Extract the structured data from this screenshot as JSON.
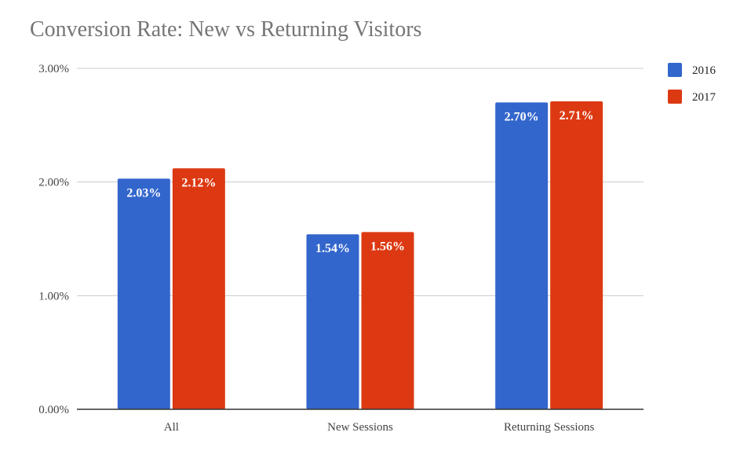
{
  "chart_data": {
    "type": "bar",
    "title": "Conversion Rate: New vs Returning Visitors",
    "categories": [
      "All",
      "New Sessions",
      "Returning Sessions"
    ],
    "series": [
      {
        "name": "2016",
        "color": "#3366cc",
        "values": [
          2.03,
          1.54,
          2.7
        ],
        "labels": [
          "2.03%",
          "1.54%",
          "2.70%"
        ]
      },
      {
        "name": "2017",
        "color": "#dc3912",
        "values": [
          2.12,
          1.56,
          2.71
        ],
        "labels": [
          "2.12%",
          "1.56%",
          "2.71%"
        ]
      }
    ],
    "yticks": [
      {
        "value": 0,
        "label": "0.00%"
      },
      {
        "value": 1,
        "label": "1.00%"
      },
      {
        "value": 2,
        "label": "2.00%"
      },
      {
        "value": 3,
        "label": "3.00%"
      }
    ],
    "ylim": [
      0,
      3
    ],
    "xlabel": "",
    "ylabel": "",
    "grid": true,
    "legend_position": "right"
  }
}
